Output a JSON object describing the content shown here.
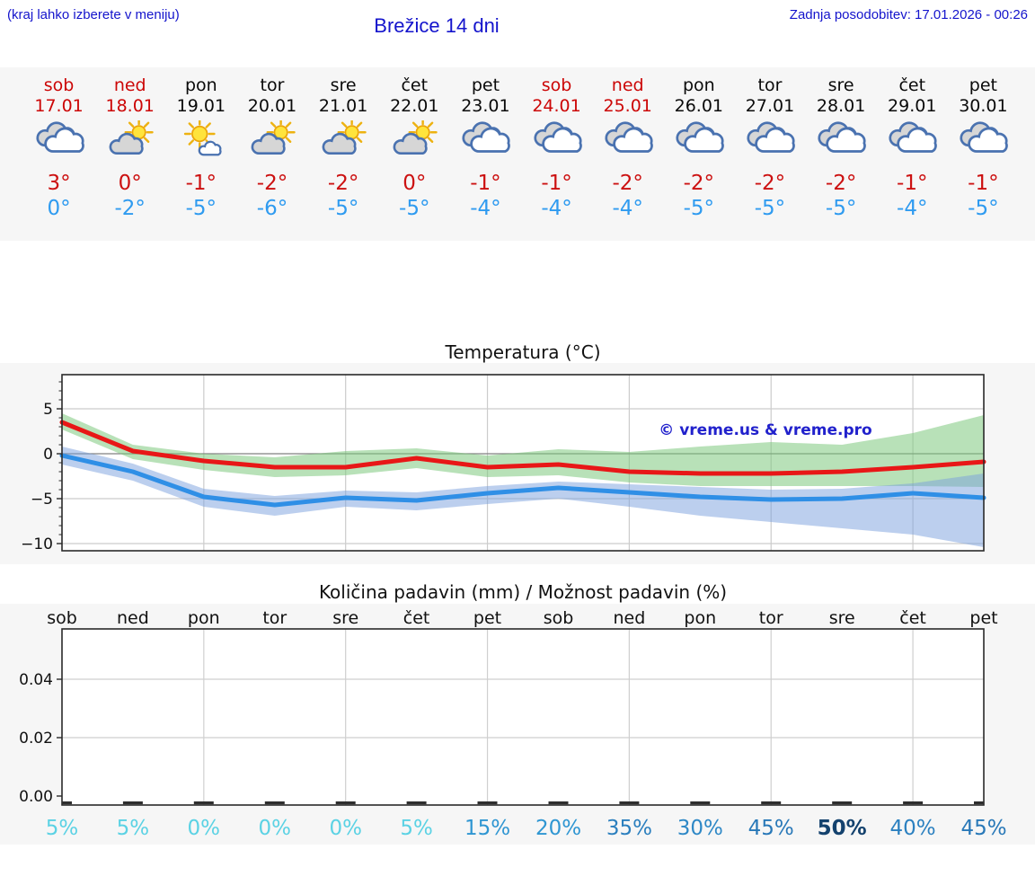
{
  "header": {
    "menu_hint": "(kraj lahko izberete v meniju)",
    "title": "Brežice 14 dni",
    "last_update": "Zadnja posodobitev: 17.01.2026 - 00:26"
  },
  "colors": {
    "link_blue": "#1414cc",
    "high_temp_red": "#cc1111",
    "low_temp_blue": "#2f9bf0",
    "weekend_red": "#cc0606"
  },
  "days": [
    {
      "name": "sob",
      "date": "17.01",
      "weekend": true,
      "icon": "cloudy",
      "high": "3°",
      "low": "0°"
    },
    {
      "name": "ned",
      "date": "18.01",
      "weekend": true,
      "icon": "partly-sunny",
      "high": "0°",
      "low": "-2°"
    },
    {
      "name": "pon",
      "date": "19.01",
      "weekend": false,
      "icon": "mostly-sunny",
      "high": "-1°",
      "low": "-5°"
    },
    {
      "name": "tor",
      "date": "20.01",
      "weekend": false,
      "icon": "partly-sunny",
      "high": "-2°",
      "low": "-6°"
    },
    {
      "name": "sre",
      "date": "21.01",
      "weekend": false,
      "icon": "partly-sunny",
      "high": "-2°",
      "low": "-5°"
    },
    {
      "name": "čet",
      "date": "22.01",
      "weekend": false,
      "icon": "partly-sunny",
      "high": "0°",
      "low": "-5°"
    },
    {
      "name": "pet",
      "date": "23.01",
      "weekend": false,
      "icon": "cloudy",
      "high": "-1°",
      "low": "-4°"
    },
    {
      "name": "sob",
      "date": "24.01",
      "weekend": true,
      "icon": "cloudy",
      "high": "-1°",
      "low": "-4°"
    },
    {
      "name": "ned",
      "date": "25.01",
      "weekend": true,
      "icon": "cloudy",
      "high": "-2°",
      "low": "-4°"
    },
    {
      "name": "pon",
      "date": "26.01",
      "weekend": false,
      "icon": "cloudy",
      "high": "-2°",
      "low": "-5°"
    },
    {
      "name": "tor",
      "date": "27.01",
      "weekend": false,
      "icon": "cloudy",
      "high": "-2°",
      "low": "-5°"
    },
    {
      "name": "sre",
      "date": "28.01",
      "weekend": false,
      "icon": "cloudy",
      "high": "-2°",
      "low": "-5°"
    },
    {
      "name": "čet",
      "date": "29.01",
      "weekend": false,
      "icon": "cloudy",
      "high": "-1°",
      "low": "-4°"
    },
    {
      "name": "pet",
      "date": "30.01",
      "weekend": false,
      "icon": "cloudy",
      "high": "-1°",
      "low": "-5°"
    }
  ],
  "chart_data": [
    {
      "type": "line",
      "title": "Temperatura (°C)",
      "watermark": "© vreme.us & vreme.pro",
      "x_labels": [
        "sob",
        "ned",
        "pon",
        "tor",
        "sre",
        "čet",
        "pet",
        "sob",
        "ned",
        "pon",
        "tor",
        "sre",
        "čet",
        "pet"
      ],
      "ylim": [
        -10.8,
        8.8
      ],
      "yticks": [
        {
          "v": 5,
          "label": "5"
        },
        {
          "v": 0,
          "label": "0"
        },
        {
          "v": -5,
          "label": "−5"
        },
        {
          "v": -10,
          "label": "−10"
        }
      ],
      "grid_x_step": 2,
      "grid": true,
      "series": [
        {
          "name": "max-temperature",
          "color": "#e81717",
          "width": 5,
          "values": [
            3.5,
            0.3,
            -0.8,
            -1.5,
            -1.5,
            -0.5,
            -1.5,
            -1.2,
            -2.0,
            -2.2,
            -2.2,
            -2.0,
            -1.5,
            -0.9
          ]
        },
        {
          "name": "min-temperature",
          "color": "#2f8fe6",
          "width": 5,
          "values": [
            -0.2,
            -2.0,
            -4.8,
            -5.7,
            -4.9,
            -5.2,
            -4.4,
            -3.8,
            -4.3,
            -4.8,
            -5.1,
            -5.0,
            -4.4,
            -4.9
          ]
        }
      ],
      "bands": [
        {
          "name": "max-temperature-range",
          "color": "#7dc87d",
          "opacity": 0.55,
          "upper": [
            4.5,
            1.0,
            0.0,
            -0.4,
            0.3,
            0.6,
            -0.2,
            0.5,
            0.2,
            0.8,
            1.3,
            1.0,
            2.3,
            4.3
          ],
          "lower": [
            2.7,
            -0.6,
            -1.8,
            -2.6,
            -2.4,
            -1.6,
            -2.6,
            -2.4,
            -3.2,
            -3.6,
            -3.6,
            -3.6,
            -3.6,
            -3.7
          ]
        },
        {
          "name": "min-temperature-range",
          "color": "#7a9fde",
          "opacity": 0.5,
          "upper": [
            0.8,
            -1.1,
            -3.9,
            -4.7,
            -4.1,
            -4.3,
            -3.6,
            -3.1,
            -3.4,
            -3.7,
            -4.0,
            -3.9,
            -3.3,
            -2.2
          ],
          "lower": [
            -1.2,
            -3.0,
            -5.9,
            -6.9,
            -5.9,
            -6.3,
            -5.6,
            -5.0,
            -5.9,
            -6.9,
            -7.6,
            -8.3,
            -9.0,
            -10.4
          ]
        }
      ]
    },
    {
      "type": "bar",
      "title": "Količina padavin (mm) / Možnost padavin (%)",
      "categories": [
        "sob",
        "ned",
        "pon",
        "tor",
        "sre",
        "čet",
        "pet",
        "sob",
        "ned",
        "pon",
        "tor",
        "sre",
        "čet",
        "pet"
      ],
      "values": [
        0,
        0,
        0,
        0,
        0,
        0,
        0,
        0,
        0,
        0,
        0,
        0,
        0,
        0
      ],
      "ylim": [
        -0.003,
        0.057
      ],
      "yticks": [
        {
          "v": 0.04,
          "label": "0.04"
        },
        {
          "v": 0.02,
          "label": "0.02"
        },
        {
          "v": 0,
          "label": "0.00"
        }
      ],
      "probabilities": [
        {
          "label": "5%",
          "color": "#5bd2e4",
          "bold": false
        },
        {
          "label": "5%",
          "color": "#5bd2e4",
          "bold": false
        },
        {
          "label": "0%",
          "color": "#5bd2e4",
          "bold": false
        },
        {
          "label": "0%",
          "color": "#5bd2e4",
          "bold": false
        },
        {
          "label": "0%",
          "color": "#5bd2e4",
          "bold": false
        },
        {
          "label": "5%",
          "color": "#5bd2e4",
          "bold": false
        },
        {
          "label": "15%",
          "color": "#2f96d2",
          "bold": false
        },
        {
          "label": "20%",
          "color": "#2f96d2",
          "bold": false
        },
        {
          "label": "35%",
          "color": "#2b7fbe",
          "bold": false
        },
        {
          "label": "30%",
          "color": "#2e88c6",
          "bold": false
        },
        {
          "label": "45%",
          "color": "#2878b8",
          "bold": false
        },
        {
          "label": "50%",
          "color": "#14426e",
          "bold": true
        },
        {
          "label": "40%",
          "color": "#2b80c0",
          "bold": false
        },
        {
          "label": "45%",
          "color": "#2878b8",
          "bold": false
        }
      ]
    }
  ]
}
